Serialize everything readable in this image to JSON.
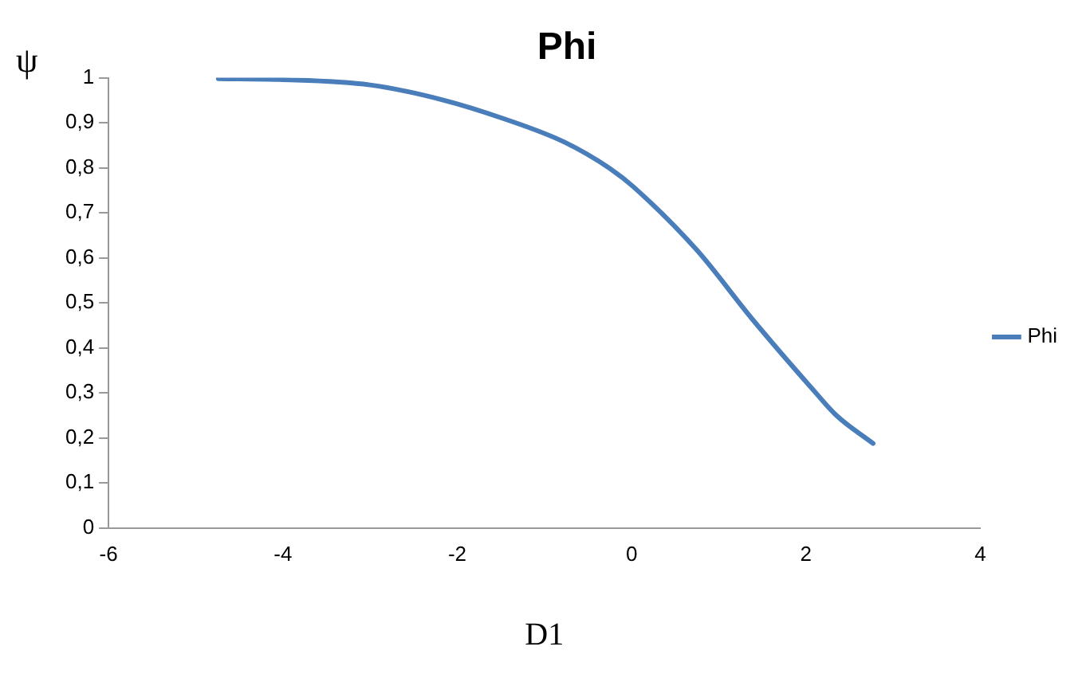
{
  "chart_data": {
    "type": "line",
    "title": "Phi",
    "xlabel": "D1",
    "ylabel": "ψ",
    "series": [
      {
        "name": "Phi",
        "color": "#4a7ebb",
        "x": [
          -4.74,
          -4.04,
          -3.0,
          -2.17,
          -1.48,
          -0.77,
          -0.23,
          0.02,
          0.75,
          1.38,
          2.06,
          2.35,
          2.77
        ],
        "values": [
          0.998,
          0.996,
          0.984,
          0.951,
          0.91,
          0.857,
          0.796,
          0.758,
          0.617,
          0.465,
          0.312,
          0.25,
          0.188
        ]
      }
    ],
    "xlim": [
      -6,
      4
    ],
    "xticks": [
      -6,
      -4,
      -2,
      0,
      2,
      4
    ],
    "ylim": [
      0,
      1
    ],
    "yticks": [
      0,
      {
        "value": 0.1,
        "label": "0,1"
      },
      {
        "value": 0.2,
        "label": "0,2"
      },
      {
        "value": 0.3,
        "label": "0,3"
      },
      {
        "value": 0.4,
        "label": "0,4"
      },
      {
        "value": 0.5,
        "label": "0,5"
      },
      {
        "value": 0.6,
        "label": "0,6"
      },
      {
        "value": 0.7,
        "label": "0,7"
      },
      {
        "value": 0.8,
        "label": "0,8"
      },
      {
        "value": 0.9,
        "label": "0,9"
      },
      1
    ],
    "grid": false,
    "legend": "right",
    "marker": "none",
    "line_style": "solid"
  }
}
